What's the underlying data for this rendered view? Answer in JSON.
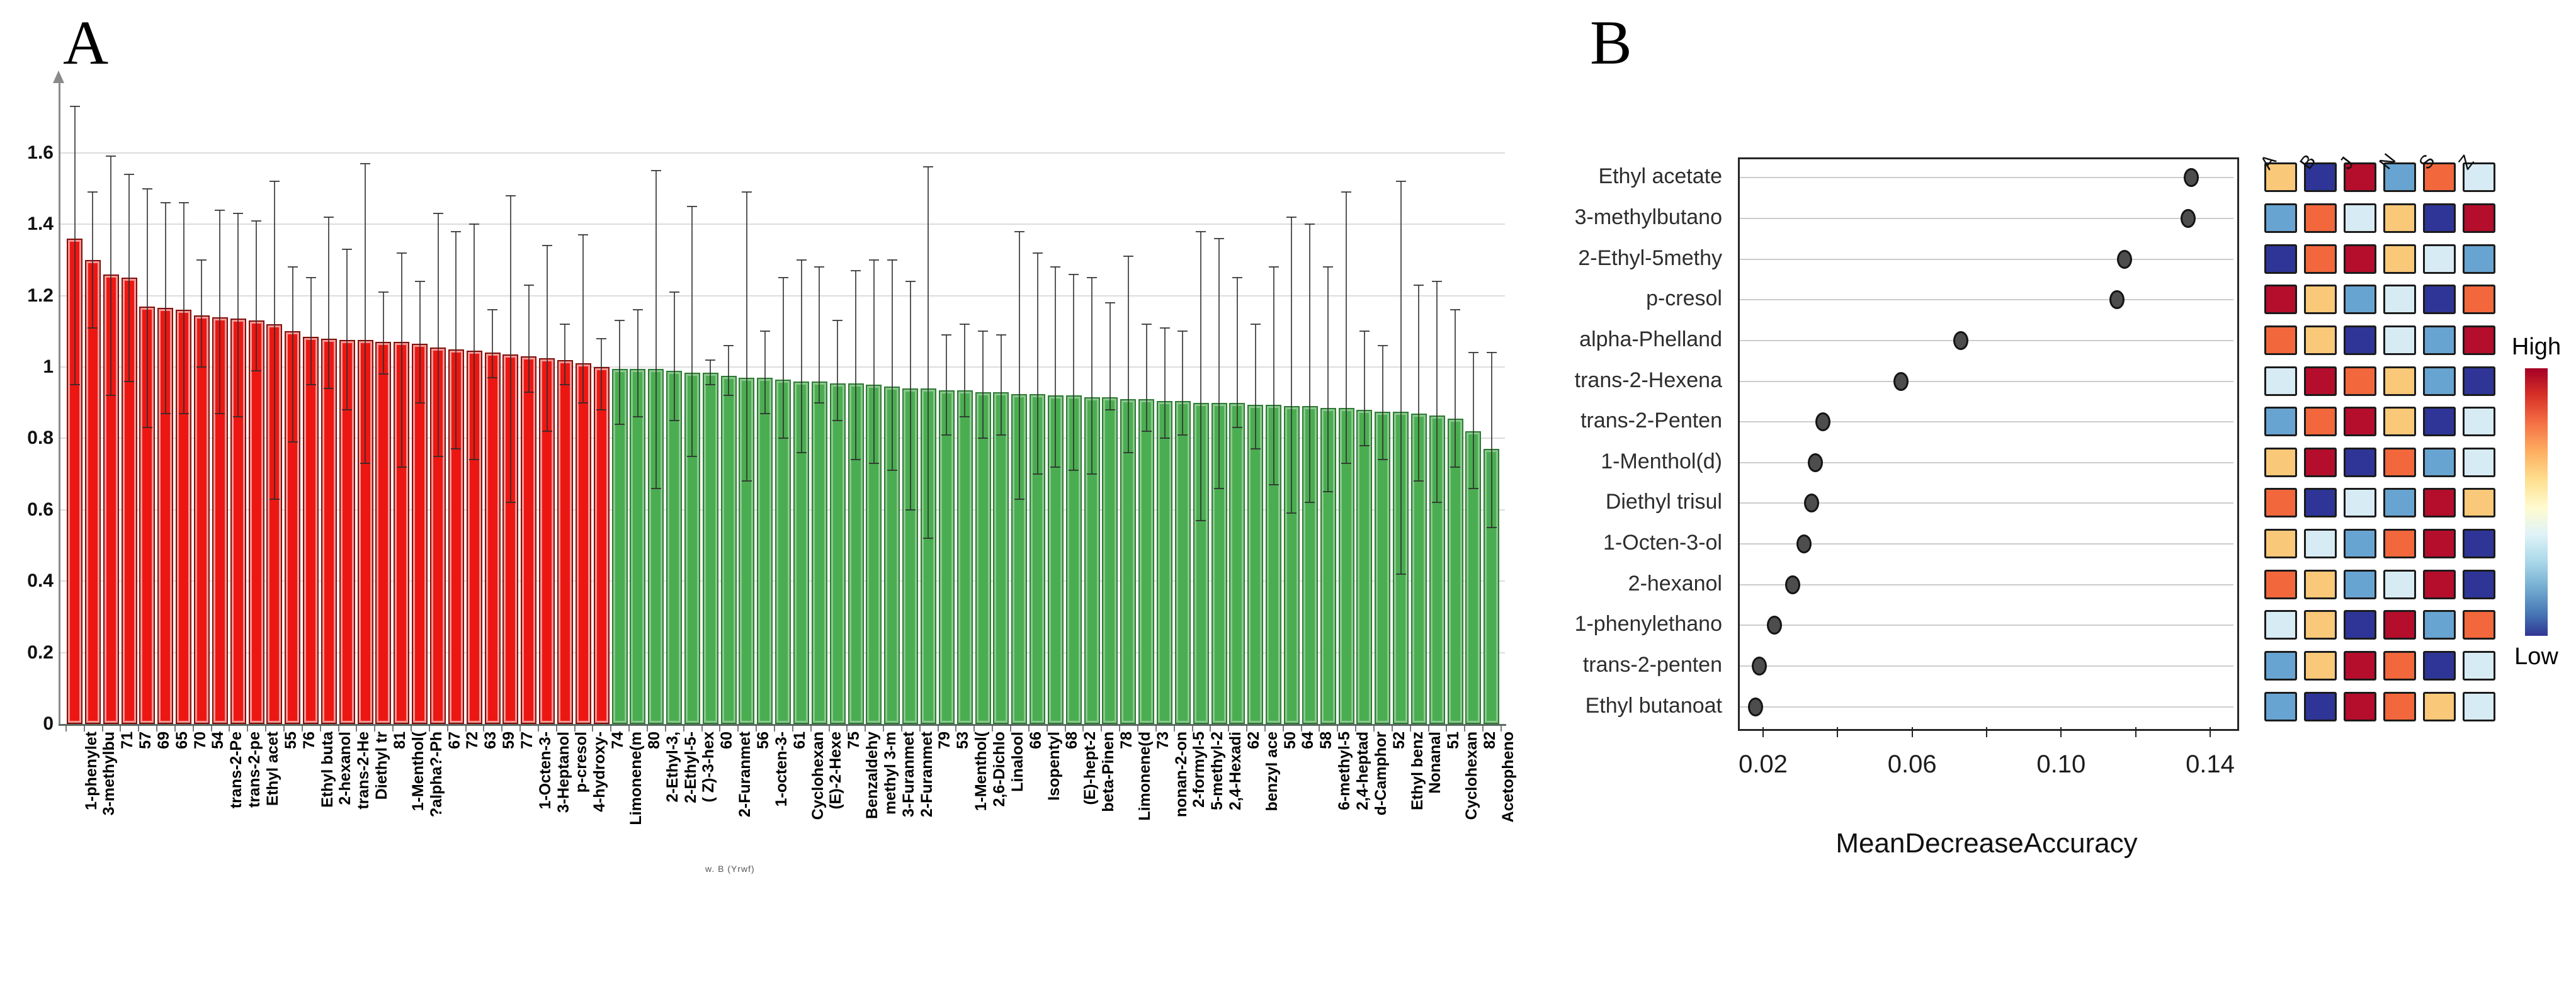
{
  "figure": {
    "panel_a": {
      "label": "A",
      "caption": "w. B (Yrwf)",
      "y_ticks": [
        "0",
        "0.2",
        "0.4",
        "0.6",
        "0.8",
        "1",
        "1.2",
        "1.4",
        "1.6"
      ],
      "y_tick_values": [
        0,
        0.2,
        0.4,
        0.6,
        0.8,
        1,
        1.2,
        1.4,
        1.6
      ]
    },
    "panel_b": {
      "label": "B",
      "xlabel": "MeanDecreaseAccuracy",
      "legend_high": "High",
      "legend_low": "Low"
    }
  },
  "chart_data": [
    {
      "type": "bar",
      "panel": "A",
      "title": "",
      "xlabel": "",
      "ylabel": "",
      "ylim": [
        0,
        1.78
      ],
      "grid": true,
      "red_count": 30,
      "bar_color_red": "#ec1712",
      "bar_color_green": "#4bad51",
      "categories": [
        "1-phenylet",
        "3-methylbu",
        "71",
        "57",
        "69",
        "65",
        "70",
        "54",
        "trans-2-Pe",
        "trans-2-pe",
        "Ethyl acet",
        "55",
        "76",
        "Ethyl buta",
        "2-hexanol",
        "trans-2-He",
        "Diethyl tr",
        "81",
        "1-Menthol(",
        "?alpha?-Ph",
        "67",
        "72",
        "63",
        "59",
        "77",
        "1-Octen-3-",
        "3-Heptanol",
        "p-cresol",
        "4-hydroxy-",
        "74",
        "Limonene(m",
        "80",
        "2-Ethyl-3,",
        "2-Ethyl-5-",
        "( Z)-3-hex",
        "60",
        "2-Furanmet",
        "56",
        "1-octen-3-",
        "61",
        "Cyclohexan",
        "(E)-2-Hexe",
        "75",
        "Benzaldehy",
        "methyl 3-m",
        "3-Furanmet",
        "2-Furanmet",
        "79",
        "53",
        "1-Menthol(",
        "2,6-Dichlo",
        "Linalool",
        "66",
        "Isopentyl",
        "68",
        "(E)-hept-2",
        "beta-Pinen",
        "78",
        "Limonene(d",
        "73",
        "nonan-2-on",
        "2-formyl-5",
        "5-methyl-2",
        "2,4-Hexadi",
        "62",
        "benzyl ace",
        "50",
        "64",
        "58",
        "6-methyl-5",
        "2,4-heptad",
        "d-Camphor",
        "52",
        "Ethyl benz",
        "Nonanal",
        "51",
        "Cyclohexan",
        "82",
        "Acetopheno"
      ],
      "values": [
        1.36,
        1.3,
        1.26,
        1.25,
        1.17,
        1.165,
        1.16,
        1.145,
        1.14,
        1.135,
        1.13,
        1.12,
        1.1,
        1.085,
        1.08,
        1.075,
        1.075,
        1.07,
        1.07,
        1.065,
        1.055,
        1.05,
        1.045,
        1.04,
        1.035,
        1.03,
        1.025,
        1.02,
        1.01,
        1.0,
        0.995,
        0.995,
        0.995,
        0.99,
        0.985,
        0.985,
        0.975,
        0.97,
        0.97,
        0.965,
        0.96,
        0.96,
        0.955,
        0.955,
        0.95,
        0.945,
        0.94,
        0.94,
        0.935,
        0.935,
        0.93,
        0.93,
        0.925,
        0.925,
        0.92,
        0.92,
        0.915,
        0.915,
        0.91,
        0.91,
        0.905,
        0.905,
        0.9,
        0.9,
        0.9,
        0.895,
        0.895,
        0.89,
        0.89,
        0.885,
        0.885,
        0.88,
        0.875,
        0.875,
        0.87,
        0.865,
        0.855,
        0.82,
        0.77
      ],
      "err_high": [
        1.73,
        1.49,
        1.59,
        1.54,
        1.5,
        1.46,
        1.46,
        1.3,
        1.44,
        1.43,
        1.41,
        1.52,
        1.28,
        1.25,
        1.42,
        1.33,
        1.57,
        1.21,
        1.32,
        1.24,
        1.43,
        1.38,
        1.4,
        1.16,
        1.48,
        1.23,
        1.34,
        1.12,
        1.37,
        1.08,
        1.13,
        1.16,
        1.55,
        1.21,
        1.45,
        1.02,
        1.06,
        1.49,
        1.1,
        1.25,
        1.3,
        1.28,
        1.13,
        1.27,
        1.3,
        1.3,
        1.24,
        1.56,
        1.09,
        1.12,
        1.1,
        1.09,
        1.38,
        1.32,
        1.28,
        1.26,
        1.25,
        1.18,
        1.31,
        1.12,
        1.11,
        1.1,
        1.38,
        1.36,
        1.25,
        1.12,
        1.28,
        1.42,
        1.4,
        1.28,
        1.49,
        1.1,
        1.06,
        1.52,
        1.23,
        1.24,
        1.16,
        1.04,
        1.04
      ],
      "err_low": [
        0.95,
        1.11,
        0.92,
        0.96,
        0.83,
        0.87,
        0.87,
        1.0,
        0.87,
        0.86,
        0.99,
        0.63,
        0.79,
        0.95,
        0.94,
        0.88,
        0.73,
        0.98,
        0.72,
        0.9,
        0.75,
        0.77,
        0.74,
        0.97,
        0.62,
        0.93,
        0.82,
        0.95,
        0.9,
        0.88,
        0.84,
        0.86,
        0.66,
        0.85,
        0.75,
        0.95,
        0.92,
        0.68,
        0.87,
        0.8,
        0.76,
        0.9,
        0.85,
        0.74,
        0.73,
        0.71,
        0.6,
        0.52,
        0.81,
        0.86,
        0.8,
        0.81,
        0.63,
        0.7,
        0.72,
        0.71,
        0.7,
        0.88,
        0.76,
        0.82,
        0.8,
        0.81,
        0.57,
        0.66,
        0.83,
        0.77,
        0.67,
        0.59,
        0.62,
        0.65,
        0.73,
        0.78,
        0.74,
        0.42,
        0.68,
        0.62,
        0.72,
        0.66,
        0.55
      ]
    },
    {
      "type": "scatter",
      "panel": "B",
      "title": "",
      "xlabel": "MeanDecreaseAccuracy",
      "xlim": [
        0.012,
        0.147
      ],
      "x_ticks": [
        0.02,
        0.04,
        0.06,
        0.08,
        0.1,
        0.12,
        0.14
      ],
      "x_tick_labels": [
        "0.02",
        "0.06",
        "0.10",
        "0.14"
      ],
      "x_tick_label_values": [
        0.02,
        0.06,
        0.1,
        0.14
      ],
      "legend_position": "right",
      "heatmap_columns": [
        "A",
        "B",
        "J",
        "N",
        "S",
        "Z"
      ],
      "palette": {
        "DR": "#b50d2c",
        "OR": "#f2673c",
        "SA": "#f9c878",
        "PB": "#d7ebf4",
        "SB": "#68a4d1",
        "DB": "#2e3597"
      },
      "rows": [
        {
          "label": "Ethyl acetate",
          "value": 0.135,
          "cells": [
            "SA",
            "DB",
            "DR",
            "SB",
            "OR",
            "PB"
          ]
        },
        {
          "label": "3-methylbutano",
          "value": 0.134,
          "cells": [
            "SB",
            "OR",
            "PB",
            "SA",
            "DB",
            "DR"
          ]
        },
        {
          "label": "2-Ethyl-5methy",
          "value": 0.117,
          "cells": [
            "DB",
            "OR",
            "DR",
            "SA",
            "PB",
            "SB"
          ]
        },
        {
          "label": "p-cresol",
          "value": 0.115,
          "cells": [
            "DR",
            "SA",
            "SB",
            "PB",
            "DB",
            "OR"
          ]
        },
        {
          "label": "alpha-Phelland",
          "value": 0.073,
          "cells": [
            "OR",
            "SA",
            "DB",
            "PB",
            "SB",
            "DR"
          ]
        },
        {
          "label": "trans-2-Hexena",
          "value": 0.057,
          "cells": [
            "PB",
            "DR",
            "OR",
            "SA",
            "SB",
            "DB"
          ]
        },
        {
          "label": "trans-2-Penten",
          "value": 0.036,
          "cells": [
            "SB",
            "OR",
            "DR",
            "SA",
            "DB",
            "PB"
          ]
        },
        {
          "label": "1-Menthol(d)",
          "value": 0.034,
          "cells": [
            "SA",
            "DR",
            "DB",
            "OR",
            "SB",
            "PB"
          ]
        },
        {
          "label": "Diethyl trisul",
          "value": 0.033,
          "cells": [
            "OR",
            "DB",
            "PB",
            "SB",
            "DR",
            "SA"
          ]
        },
        {
          "label": "1-Octen-3-ol",
          "value": 0.031,
          "cells": [
            "SA",
            "PB",
            "SB",
            "OR",
            "DR",
            "DB"
          ]
        },
        {
          "label": "2-hexanol",
          "value": 0.028,
          "cells": [
            "OR",
            "SA",
            "SB",
            "PB",
            "DR",
            "DB"
          ]
        },
        {
          "label": "1-phenylethano",
          "value": 0.023,
          "cells": [
            "PB",
            "SA",
            "DB",
            "DR",
            "SB",
            "OR"
          ]
        },
        {
          "label": "trans-2-penten",
          "value": 0.019,
          "cells": [
            "SB",
            "SA",
            "DR",
            "OR",
            "DB",
            "PB"
          ]
        },
        {
          "label": "Ethyl butanoat",
          "value": 0.018,
          "cells": [
            "SB",
            "DB",
            "DR",
            "OR",
            "SA",
            "PB"
          ]
        }
      ]
    }
  ]
}
